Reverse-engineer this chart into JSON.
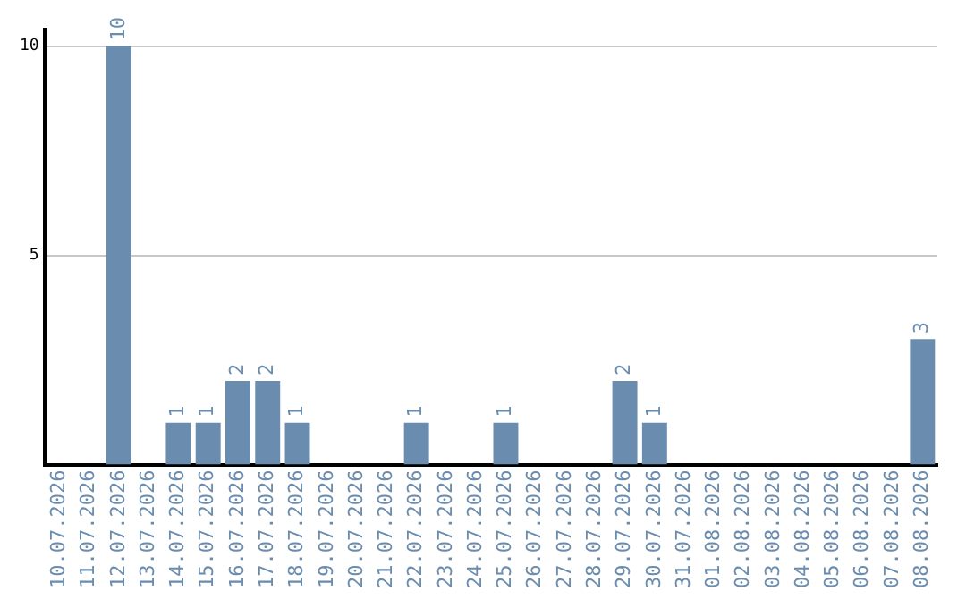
{
  "chart_data": {
    "type": "bar",
    "categories": [
      "10.07.2026",
      "11.07.2026",
      "12.07.2026",
      "13.07.2026",
      "14.07.2026",
      "15.07.2026",
      "16.07.2026",
      "17.07.2026",
      "18.07.2026",
      "19.07.2026",
      "20.07.2026",
      "21.07.2026",
      "22.07.2026",
      "23.07.2026",
      "24.07.2026",
      "25.07.2026",
      "26.07.2026",
      "27.07.2026",
      "28.07.2026",
      "29.07.2026",
      "30.07.2026",
      "31.07.2026",
      "01.08.2026",
      "02.08.2026",
      "03.08.2026",
      "04.08.2026",
      "05.08.2026",
      "06.08.2026",
      "07.08.2026",
      "08.08.2026"
    ],
    "values": [
      0,
      0,
      10,
      0,
      1,
      1,
      2,
      2,
      1,
      0,
      0,
      0,
      1,
      0,
      0,
      1,
      0,
      0,
      0,
      2,
      1,
      0,
      0,
      0,
      0,
      0,
      0,
      0,
      0,
      3
    ],
    "value_labels": [
      null,
      null,
      "10",
      null,
      "1",
      "1",
      "2",
      "2",
      "1",
      null,
      null,
      null,
      "1",
      null,
      null,
      "1",
      null,
      null,
      null,
      "2",
      "1",
      null,
      null,
      null,
      null,
      null,
      null,
      null,
      null,
      "3"
    ],
    "color": "#6a8caf",
    "ylim": [
      0,
      10.4
    ],
    "yticks": [
      5,
      10
    ],
    "grid": "y",
    "legend": false
  }
}
